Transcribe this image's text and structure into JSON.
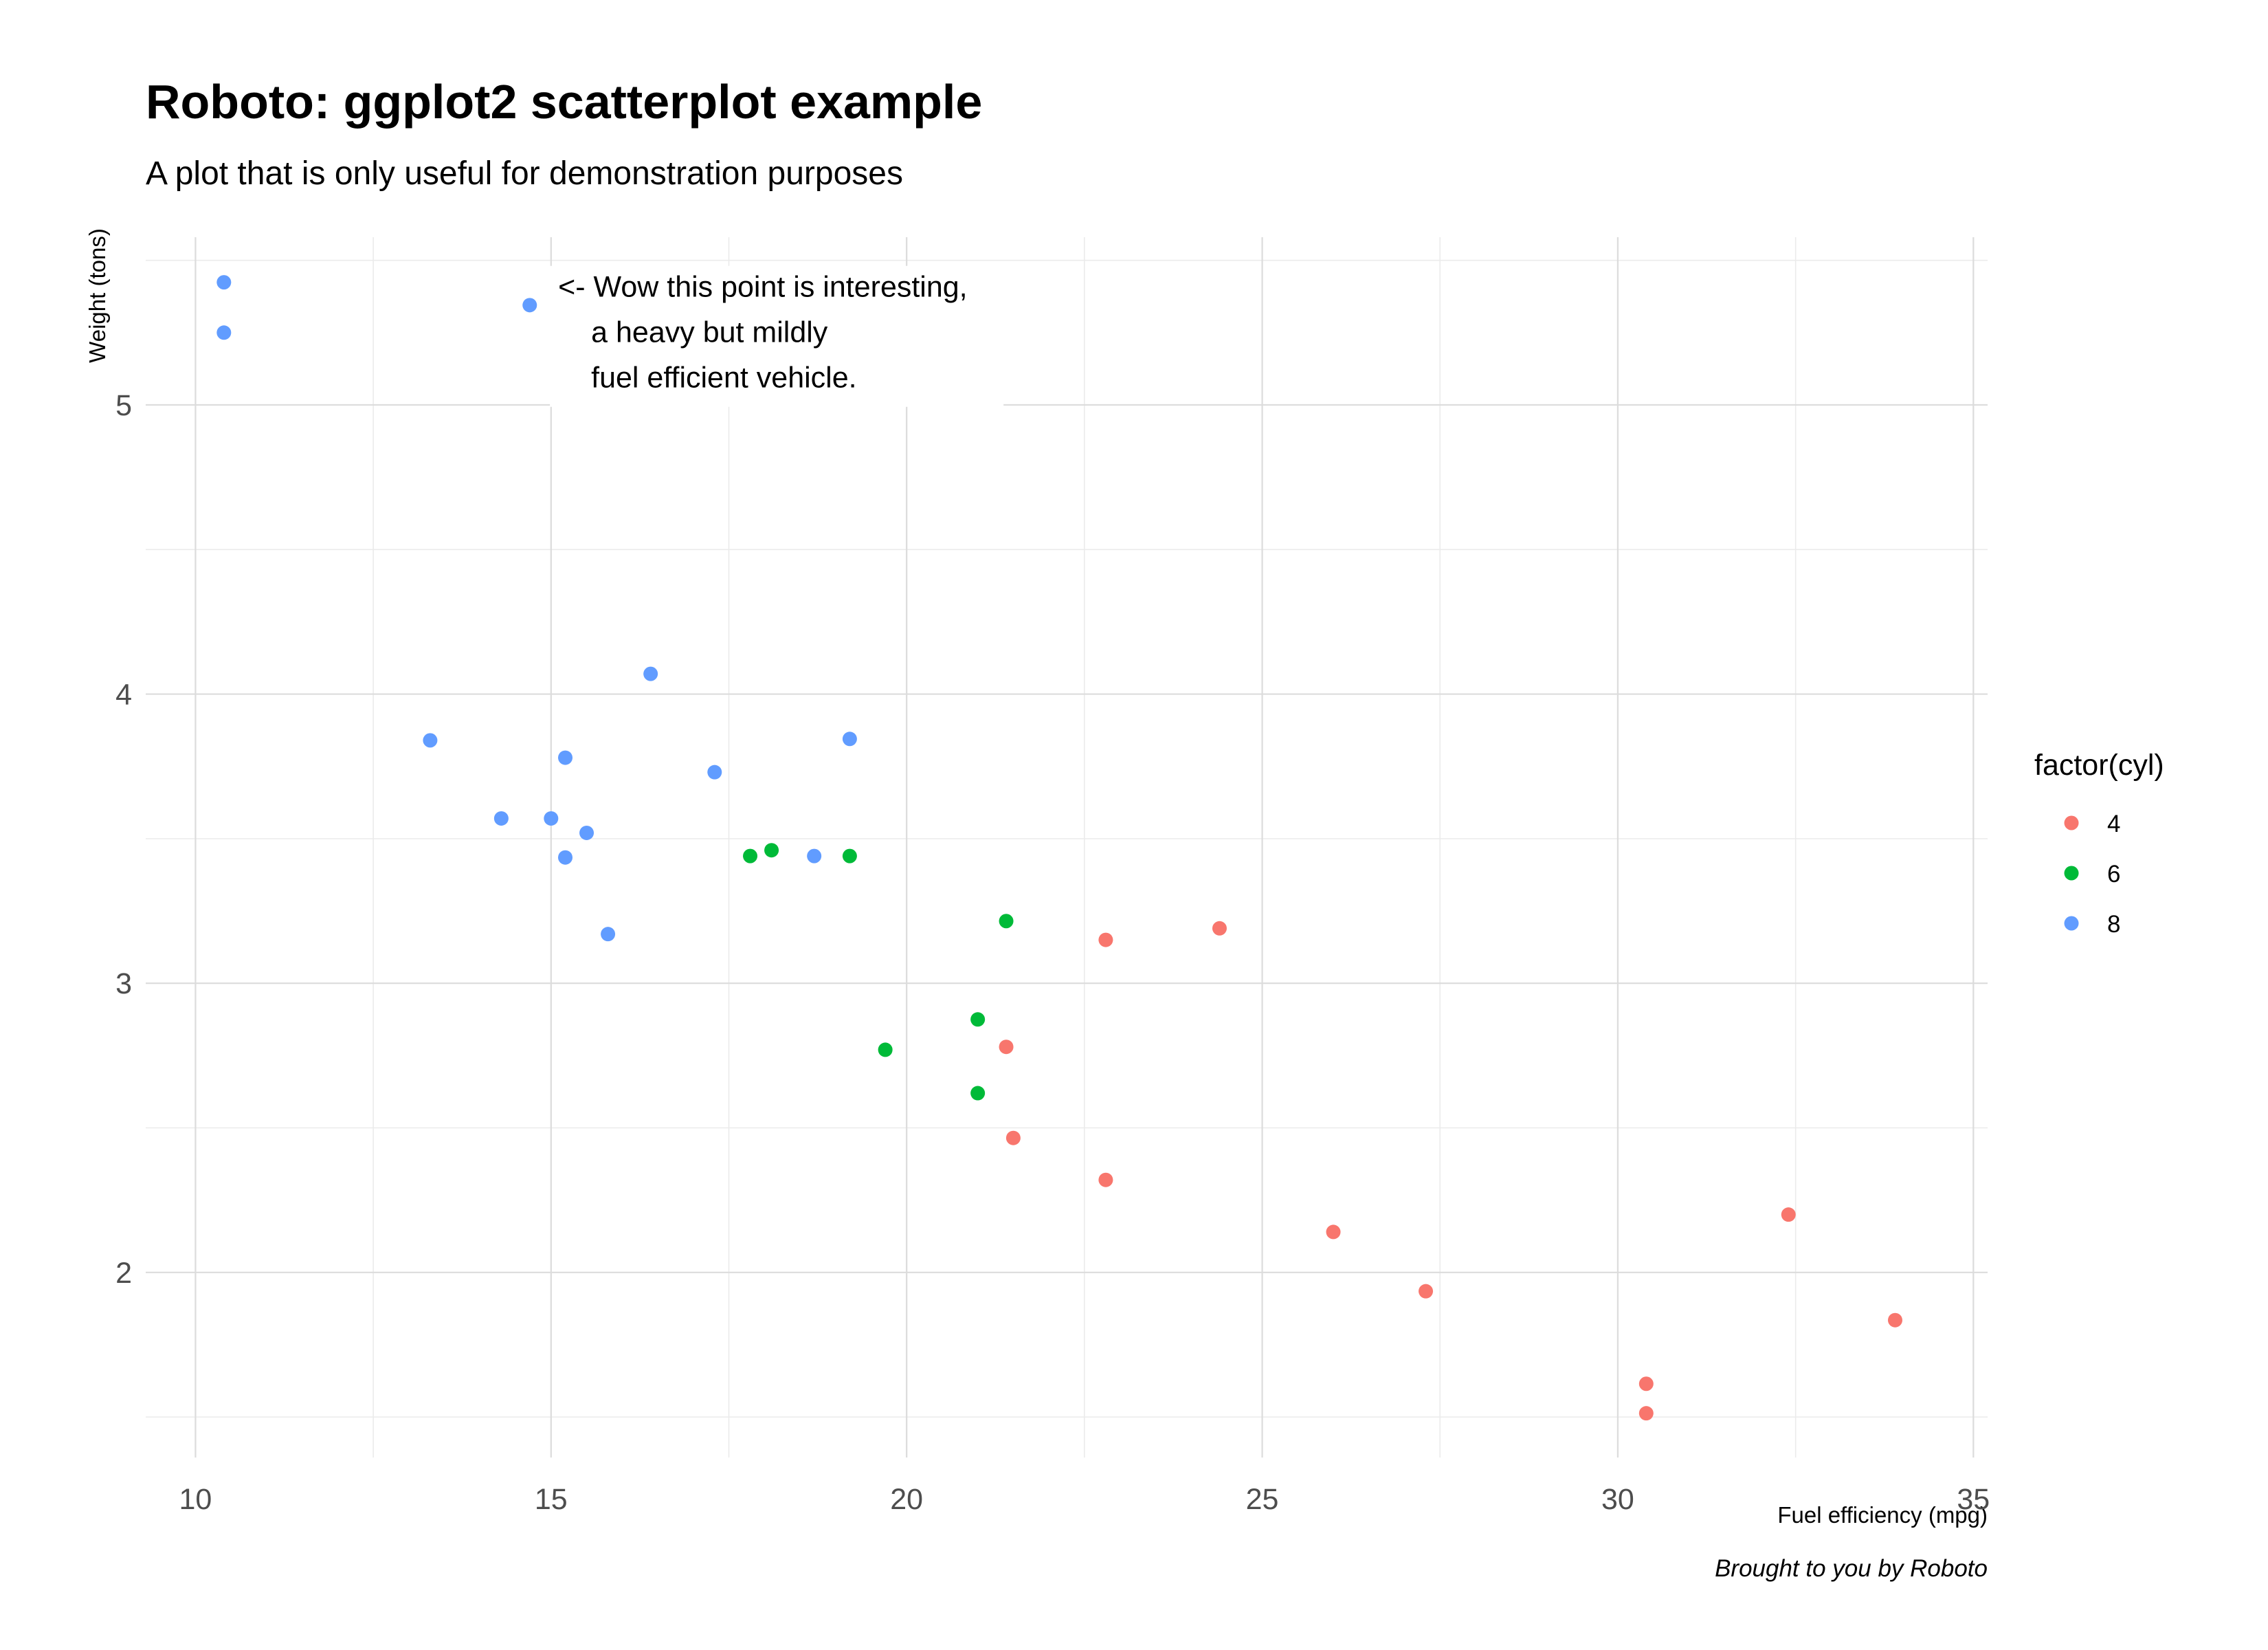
{
  "chart_data": {
    "type": "scatter",
    "title": "Roboto: ggplot2 scatterplot example",
    "subtitle": "A plot that is only useful for demonstration purposes",
    "xlabel": "Fuel efficiency (mpg)",
    "ylabel": "Weight (tons)",
    "caption": "Brought to you by Roboto",
    "xlim": [
      9.3,
      35.2
    ],
    "ylim": [
      1.36,
      5.58
    ],
    "x_ticks": [
      10,
      15,
      20,
      25,
      30,
      35
    ],
    "y_ticks": [
      2,
      3,
      4,
      5
    ],
    "grid": true,
    "legend": {
      "title": "factor(cyl)",
      "position": "right"
    },
    "annotation": {
      "lines": [
        "<- Wow this point is interesting,",
        "a heavy but mildly",
        "fuel efficient vehicle."
      ],
      "x": 15.1,
      "y": 5.35
    },
    "series": [
      {
        "name": "4",
        "color": "#F8766D",
        "points": [
          [
            22.8,
            2.32
          ],
          [
            24.4,
            3.19
          ],
          [
            22.8,
            3.15
          ],
          [
            32.4,
            2.2
          ],
          [
            30.4,
            1.615
          ],
          [
            33.9,
            1.835
          ],
          [
            21.5,
            2.465
          ],
          [
            27.3,
            1.935
          ],
          [
            26.0,
            2.14
          ],
          [
            30.4,
            1.513
          ],
          [
            21.4,
            2.78
          ]
        ]
      },
      {
        "name": "6",
        "color": "#00BA38",
        "points": [
          [
            21.0,
            2.62
          ],
          [
            21.0,
            2.875
          ],
          [
            21.4,
            3.215
          ],
          [
            18.1,
            3.46
          ],
          [
            19.2,
            3.44
          ],
          [
            17.8,
            3.44
          ],
          [
            19.7,
            2.77
          ]
        ]
      },
      {
        "name": "8",
        "color": "#619CFF",
        "points": [
          [
            18.7,
            3.44
          ],
          [
            14.3,
            3.57
          ],
          [
            16.4,
            4.07
          ],
          [
            17.3,
            3.73
          ],
          [
            15.2,
            3.78
          ],
          [
            10.4,
            5.25
          ],
          [
            10.4,
            5.424
          ],
          [
            14.7,
            5.345
          ],
          [
            15.5,
            3.52
          ],
          [
            15.2,
            3.435
          ],
          [
            13.3,
            3.84
          ],
          [
            19.2,
            3.845
          ],
          [
            15.8,
            3.17
          ],
          [
            15.0,
            3.57
          ]
        ]
      }
    ]
  }
}
